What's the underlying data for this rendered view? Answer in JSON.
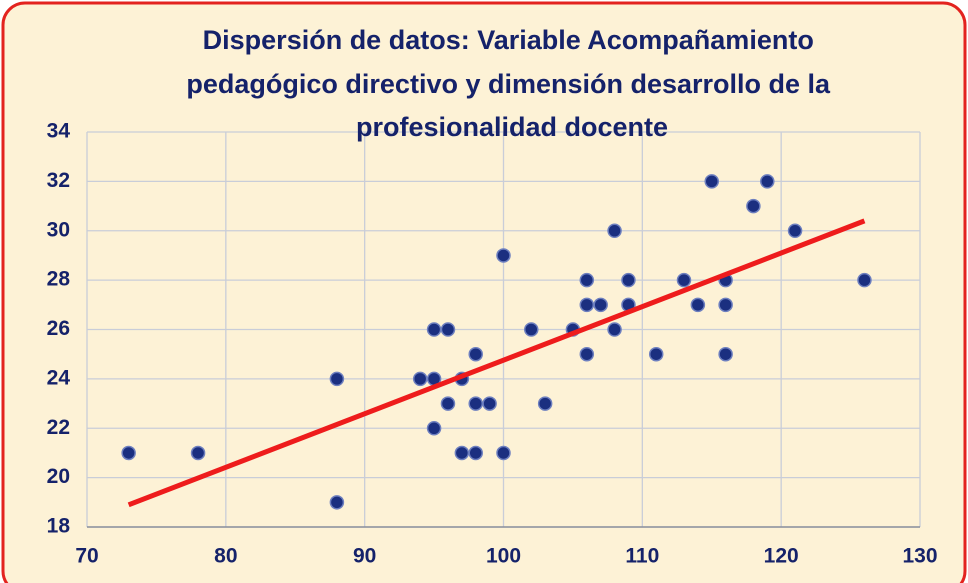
{
  "chart_data": {
    "type": "scatter",
    "title": [
      "Dispersión de datos: Variable Acompañamiento",
      "pedagógico directivo y dimensión desarrollo de la",
      "profesionalidad docente"
    ],
    "x": [
      73,
      78,
      88,
      88,
      94,
      95,
      95,
      95,
      96,
      96,
      97,
      97,
      98,
      98,
      98,
      99,
      100,
      100,
      102,
      103,
      105,
      106,
      106,
      106,
      107,
      108,
      108,
      109,
      109,
      111,
      113,
      114,
      115,
      116,
      116,
      116,
      118,
      119,
      121,
      126
    ],
    "values": [
      21,
      21,
      24,
      19,
      24,
      26,
      24,
      22,
      26,
      23,
      24,
      21,
      25,
      23,
      21,
      23,
      29,
      21,
      26,
      23,
      26,
      28,
      27,
      25,
      27,
      30,
      26,
      28,
      27,
      25,
      28,
      27,
      32,
      28,
      27,
      25,
      31,
      32,
      30,
      28
    ],
    "color": "#1b2f80",
    "trendline": {
      "x": [
        73,
        126
      ],
      "y": [
        18.9,
        30.4
      ],
      "color": "#ee1c1c"
    },
    "xlim": [
      70,
      130
    ],
    "xticks": [
      70,
      80,
      90,
      100,
      110,
      120,
      130
    ],
    "ylim": [
      18,
      34
    ],
    "yticks": [
      18,
      20,
      22,
      24,
      26,
      28,
      30,
      32,
      34
    ],
    "grid": true
  }
}
